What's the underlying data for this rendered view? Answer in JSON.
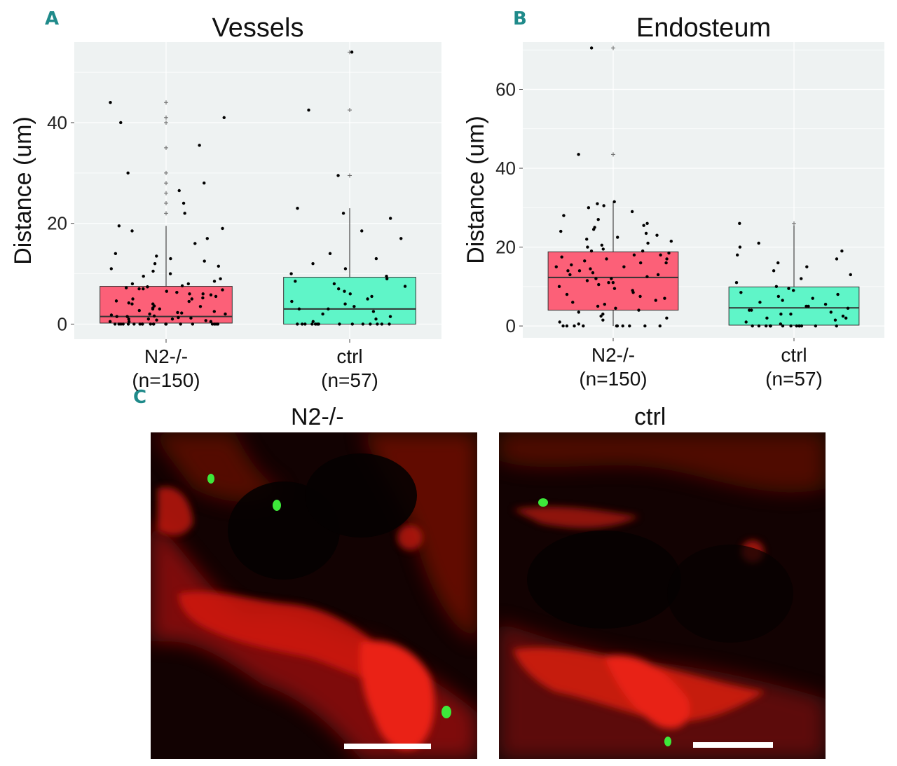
{
  "panels": {
    "a": "A",
    "b": "B",
    "c": "C"
  },
  "chart_data": [
    {
      "type": "box",
      "title": "Vessels",
      "ylabel": "Distance (um)",
      "ylim": [
        -3,
        56
      ],
      "yticks": [
        0,
        20,
        40
      ],
      "grid": true,
      "categories": [
        "N2-/-",
        "ctrl"
      ],
      "category_counts": [
        "(n=150)",
        "(n=57)"
      ],
      "boxes": [
        {
          "name": "N2-/-",
          "q1": 0.2,
          "median": 1.5,
          "q3": 7.5,
          "whisker_low": 0,
          "whisker_high": 19.5,
          "color": "#fc6078",
          "outliers": [
            22,
            24,
            26,
            28,
            30,
            35,
            40,
            41,
            44
          ]
        },
        {
          "name": "ctrl",
          "q1": 0,
          "median": 3,
          "q3": 9.3,
          "whisker_low": 0,
          "whisker_high": 23,
          "color": "#5ff5c8",
          "outliers": [
            29.5,
            42.5,
            54
          ]
        }
      ],
      "jitter_points": [
        {
          "category": "N2-/-",
          "values": [
            0,
            0,
            0,
            0,
            0,
            0,
            0,
            0,
            0,
            0,
            0,
            0,
            0,
            0,
            0,
            0,
            0,
            0,
            0,
            0,
            0.5,
            0.5,
            0.5,
            0.7,
            0.8,
            1,
            1,
            1,
            1.2,
            1.3,
            1.5,
            1.5,
            1.6,
            1.8,
            2,
            2,
            2.2,
            2.3,
            2.5,
            2.7,
            3,
            3,
            3.2,
            3.5,
            3.6,
            4,
            4,
            4.2,
            4.5,
            4.6,
            5,
            5,
            5.2,
            5.5,
            5.8,
            6,
            6,
            6.3,
            6.5,
            6.8,
            7,
            7,
            7.2,
            7.4,
            7.6,
            8,
            8,
            8.5,
            9,
            9.5,
            10,
            10.5,
            11,
            11.5,
            12,
            12.5,
            13,
            13.5,
            14,
            16,
            17,
            18.5,
            19,
            19.5,
            22,
            24,
            26.5,
            28,
            30,
            35.5,
            40,
            41,
            44
          ]
        },
        {
          "category": "ctrl",
          "values": [
            0,
            0,
            0,
            0,
            0,
            0,
            0,
            0,
            0,
            0,
            0,
            0,
            0,
            0,
            0.5,
            1,
            1.5,
            2,
            2.5,
            3,
            3,
            3.5,
            4,
            4.5,
            5,
            5.5,
            6,
            6.5,
            7,
            7.5,
            8,
            8.5,
            9,
            9.5,
            10,
            11,
            12,
            13,
            14,
            17,
            18.5,
            21,
            22,
            23,
            29.5,
            42.5,
            54
          ]
        }
      ]
    },
    {
      "type": "box",
      "title": "Endosteum",
      "ylabel": "Distance (um)",
      "ylim": [
        -3,
        72
      ],
      "yticks": [
        0,
        20,
        40,
        60
      ],
      "grid": true,
      "categories": [
        "N2-/-",
        "ctrl"
      ],
      "category_counts": [
        "(n=150)",
        "(n=57)"
      ],
      "boxes": [
        {
          "name": "N2-/-",
          "q1": 4,
          "median": 12.3,
          "q3": 18.8,
          "whisker_low": 0,
          "whisker_high": 31.5,
          "color": "#fc6078",
          "outliers": [
            43.5,
            70.5
          ]
        },
        {
          "name": "ctrl",
          "q1": 0.2,
          "median": 4.6,
          "q3": 9.9,
          "whisker_low": 0,
          "whisker_high": 26,
          "color": "#5ff5c8",
          "outliers": [
            26
          ]
        }
      ],
      "jitter_points": [
        {
          "category": "N2-/-",
          "values": [
            0,
            0,
            0,
            0,
            0,
            0,
            0,
            0,
            0,
            0,
            0.5,
            1,
            1.5,
            2,
            2.5,
            3,
            3.5,
            4,
            4.5,
            5,
            5.5,
            6,
            6.5,
            7,
            7.5,
            8,
            8.5,
            9,
            9.5,
            10,
            10.5,
            11,
            11,
            11.5,
            12,
            12,
            12.5,
            13,
            13,
            13.5,
            14,
            14,
            14.5,
            15,
            15,
            15.5,
            16,
            16,
            16.5,
            17,
            17,
            17.5,
            18,
            18,
            18.5,
            19,
            19,
            19.5,
            20,
            20.5,
            21,
            21.5,
            22,
            22.5,
            23,
            23.5,
            24,
            24.5,
            25,
            25.5,
            26,
            27,
            28,
            29,
            30,
            30.5,
            31,
            31.5,
            43.5,
            70.5
          ]
        },
        {
          "category": "ctrl",
          "values": [
            0,
            0,
            0,
            0,
            0,
            0,
            0,
            0,
            0,
            0,
            0,
            0,
            0,
            0.5,
            1,
            1.5,
            2,
            2,
            2.5,
            3,
            3,
            3.5,
            4,
            4,
            4.5,
            5,
            5,
            5.5,
            6,
            6.5,
            7,
            7.5,
            8,
            8.5,
            9,
            9.5,
            10,
            11,
            12,
            13,
            14,
            15,
            16,
            17,
            18,
            19,
            20,
            21,
            26
          ]
        }
      ]
    }
  ],
  "images": [
    {
      "title": "N2-/-"
    },
    {
      "title": "ctrl"
    }
  ],
  "colors": {
    "panel_bg": "#eef2f2",
    "n2": "#fc6078",
    "ctrl": "#5ff5c8",
    "letter": "#1f8a8a"
  }
}
